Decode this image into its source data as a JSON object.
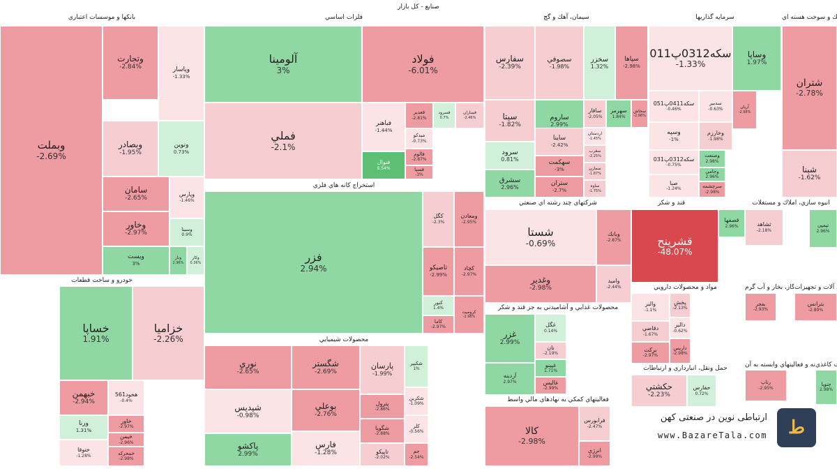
{
  "title": "صنايع - كل بازار",
  "brand": {
    "tagline": "ارتباطی نوین در صنعتی کهن",
    "url": "www.BazareTala.com",
    "logo": "logo-icon"
  },
  "colors": {
    "up_strong": "#5cbf73",
    "up_mid": "#8fd8a3",
    "up_light": "#d1f0da",
    "flat": "#fbe3e6",
    "down_light": "#f6cdd1",
    "down_mid": "#ee9ba1",
    "down_strong": "#d9474f"
  },
  "sectors": [
    {
      "name": "بانكها و موسسات اعتباري",
      "tiles": [
        {
          "symbol": "وبملت",
          "change": -2.69
        },
        {
          "symbol": "وتجارت",
          "change": -2.84
        },
        {
          "symbol": "وپاسار",
          "change": -1.33
        },
        {
          "symbol": "وبصادر",
          "change": -1.95
        },
        {
          "symbol": "ونوين",
          "change": 0.73
        },
        {
          "symbol": "سامان",
          "change": -2.65
        },
        {
          "symbol": "وپارس",
          "change": -1.46
        },
        {
          "symbol": "وخاور",
          "change": -2.97
        },
        {
          "symbol": "وسينا",
          "change": 0.9
        },
        {
          "symbol": "ويست",
          "change": 3
        },
        {
          "symbol": "ونار",
          "change": 2.96
        },
        {
          "symbol": "وكار",
          "change": 0.36
        }
      ]
    },
    {
      "name": "فلزات اساسي",
      "tiles": [
        {
          "symbol": "آلومينا",
          "change": 3
        },
        {
          "symbol": "فولاد",
          "change": -6.01
        },
        {
          "symbol": "فملي",
          "change": -2.1
        },
        {
          "symbol": "فباهنر",
          "change": -1.44
        },
        {
          "symbol": "فنوال",
          "change": 6.54
        },
        {
          "symbol": "فغدير",
          "change": -2.81
        },
        {
          "symbol": "فسرود",
          "change": 0.7
        },
        {
          "symbol": "فسازان",
          "change": -2.46
        },
        {
          "symbol": "ميدكو",
          "change": -0.73
        },
        {
          "symbol": "فالوم",
          "change": -2.87
        },
        {
          "symbol": "فسپا",
          "change": -3
        }
      ]
    },
    {
      "name": "سيمان، آهك و گچ",
      "tiles": [
        {
          "symbol": "سفارس",
          "change": -2.39
        },
        {
          "symbol": "سصوفي",
          "change": -1.98
        },
        {
          "symbol": "سخزر",
          "change": 1.32
        },
        {
          "symbol": "سپاها",
          "change": -2.98
        },
        {
          "symbol": "سيتا",
          "change": -1.82
        },
        {
          "symbol": "ساروم",
          "change": 2.99
        },
        {
          "symbol": "سافار",
          "change": -2.05
        },
        {
          "symbol": "سهرمز",
          "change": 1.84
        },
        {
          "symbol": "سخاش",
          "change": -2.98
        },
        {
          "symbol": "سرود",
          "change": 0.81
        },
        {
          "symbol": "ساينا",
          "change": -2.42
        },
        {
          "symbol": "سهكمت",
          "change": -3
        },
        {
          "symbol": "سشرق",
          "change": 2.96
        },
        {
          "symbol": "ستران",
          "change": -2.7
        },
        {
          "symbol": "اردستان",
          "change": -1.45
        },
        {
          "symbol": "سغرب",
          "change": -2.25
        },
        {
          "symbol": "سمازن",
          "change": -1.87
        },
        {
          "symbol": "ساوه",
          "change": -1.75
        }
      ]
    },
    {
      "name": "سرمايه گذاريها",
      "tiles": [
        {
          "symbol": "سكه0312پ011",
          "change": -1.33
        },
        {
          "symbol": "وساپا",
          "change": 1.97
        },
        {
          "symbol": "سكه0411پ051",
          "change": -0.46
        },
        {
          "symbol": "سدبير",
          "change": -0.63
        },
        {
          "symbol": "آريان",
          "change": -2.98
        },
        {
          "symbol": "وسپه",
          "change": -1
        },
        {
          "symbol": "وخارزم",
          "change": -1.98
        },
        {
          "symbol": "سكه0312پ031",
          "change": -0.75
        },
        {
          "symbol": "وصنعت",
          "change": 2.98
        },
        {
          "symbol": "صبا",
          "change": -1.24
        },
        {
          "symbol": "وجامي",
          "change": 2.96
        },
        {
          "symbol": "سرچشمه",
          "change": -2.98
        }
      ]
    },
    {
      "name": "فراورده هاي نفتي، كك و سوخت هسته اي",
      "tiles": [
        {
          "symbol": "شتران",
          "change": -2.78
        },
        {
          "symbol": "شبنا",
          "change": -1.62
        }
      ]
    },
    {
      "name": "استخراج كانه هاي فلزي",
      "tiles": [
        {
          "symbol": "فزر",
          "change": 2.94
        },
        {
          "symbol": "كگل",
          "change": -2.3
        },
        {
          "symbol": "ومعادن",
          "change": -2.95
        },
        {
          "symbol": "تاصيكو",
          "change": -2.99
        },
        {
          "symbol": "كچاد",
          "change": -2.97
        },
        {
          "symbol": "كنور",
          "change": 1.4
        },
        {
          "symbol": "كاما",
          "change": -2.97
        },
        {
          "symbol": "كروميت",
          "change": -2.98
        }
      ]
    },
    {
      "name": "شركتهاي چند رشته اي صنعتي",
      "tiles": [
        {
          "symbol": "شستا",
          "change": -0.69
        },
        {
          "symbol": "وبانك",
          "change": -2.87
        },
        {
          "symbol": "وغدير",
          "change": -2.98
        },
        {
          "symbol": "واميد",
          "change": -2.44
        }
      ]
    },
    {
      "name": "قند و شكر",
      "tiles": [
        {
          "symbol": "قشرينح",
          "change": -48.07
        },
        {
          "symbol": "قصفها",
          "change": 2.96
        }
      ]
    },
    {
      "name": "خودرو و ساخت قطعات",
      "tiles": [
        {
          "symbol": "خساپا",
          "change": 1.91
        },
        {
          "symbol": "خزامیا",
          "change": -2.26
        },
        {
          "symbol": "خبهمن",
          "change": -2.94
        },
        {
          "symbol": "هخود561",
          "change": -0.4
        },
        {
          "symbol": "ورنا",
          "change": 1.31
        },
        {
          "symbol": "خاور",
          "change": -2.97
        },
        {
          "symbol": "خيمن",
          "change": -2.96
        },
        {
          "symbol": "ختوقا",
          "change": -1.28
        },
        {
          "symbol": "خمحركه",
          "change": -2.98
        }
      ]
    },
    {
      "name": "محصولات شيميايي",
      "tiles": [
        {
          "symbol": "نوري",
          "change": -2.65
        },
        {
          "symbol": "شگستر",
          "change": -2.69
        },
        {
          "symbol": "پارسان",
          "change": -1.99
        },
        {
          "symbol": "شپديس",
          "change": -0.98
        },
        {
          "symbol": "بوعلي",
          "change": -2.76
        },
        {
          "symbol": "پترول",
          "change": -2.86
        },
        {
          "symbol": "پاكشو",
          "change": 2.99
        },
        {
          "symbol": "فارس",
          "change": -1.28
        },
        {
          "symbol": "شگويا",
          "change": -2.88
        },
        {
          "symbol": "تاپيكو",
          "change": -2.02
        },
        {
          "symbol": "شكبير",
          "change": 1
        },
        {
          "symbol": "شكربن",
          "change": -1.09
        },
        {
          "symbol": "كلر",
          "change": -0.56
        },
        {
          "symbol": "جم",
          "change": -2.54
        }
      ]
    },
    {
      "name": "محصولات غذايي و آشاميدني به جز قند و شكر",
      "tiles": [
        {
          "symbol": "غزر",
          "change": 2.99
        },
        {
          "symbol": "غگل",
          "change": 0.14
        },
        {
          "symbol": "نان",
          "change": -2.19
        },
        {
          "symbol": "غپينو",
          "change": 1.71
        },
        {
          "symbol": "غاليس",
          "change": -2.99
        },
        {
          "symbol": "آردينه",
          "change": 2.97
        }
      ]
    },
    {
      "name": "فعاليتهاي كمكي به نهادهاي مالي واسط",
      "tiles": [
        {
          "symbol": "كالا",
          "change": -2.98
        },
        {
          "symbol": "فرابورس",
          "change": -2.47
        },
        {
          "symbol": "انرژي",
          "change": -2.99
        }
      ]
    },
    {
      "name": "مواد و محصولات دارويي",
      "tiles": [
        {
          "symbol": "والبر",
          "change": -1.1
        },
        {
          "symbol": "دقاضي",
          "change": -1.67
        },
        {
          "symbol": "بركت",
          "change": -2.97
        },
        {
          "symbol": "پخش",
          "change": -2.13
        },
        {
          "symbol": "دالبر",
          "change": -0.62
        },
        {
          "symbol": "داريس",
          "change": -2.98
        }
      ]
    },
    {
      "name": "حمل ونقل، انبارداري و ارتباطات",
      "tiles": [
        {
          "symbol": "حكشتي",
          "change": -2.23
        },
        {
          "symbol": "حفارس",
          "change": 0.72
        }
      ]
    },
    {
      "name": "انبوه سازي، املاك و مستغلات",
      "tiles": [
        {
          "symbol": "ثشاهد",
          "change": -2.18
        }
      ]
    },
    {
      "name": "ماشين آلات و تجهيزات",
      "tiles": [
        {
          "symbol": "تپمپي",
          "change": 2.96
        }
      ]
    },
    {
      "name": "عرضه برق، گاز، بخار و آب گرم",
      "tiles": [
        {
          "symbol": "بترانس",
          "change": -2.89
        },
        {
          "symbol": "بفجر",
          "change": -2.93
        }
      ]
    },
    {
      "name": "رايانه و فعاليتهاي وابسته به آن",
      "tiles": [
        {
          "symbol": "رتاپ",
          "change": -2.95
        }
      ]
    },
    {
      "name": "محصولات كاغذي",
      "tiles": [
        {
          "symbol": "چنوپا",
          "change": 2.98
        }
      ]
    }
  ]
}
